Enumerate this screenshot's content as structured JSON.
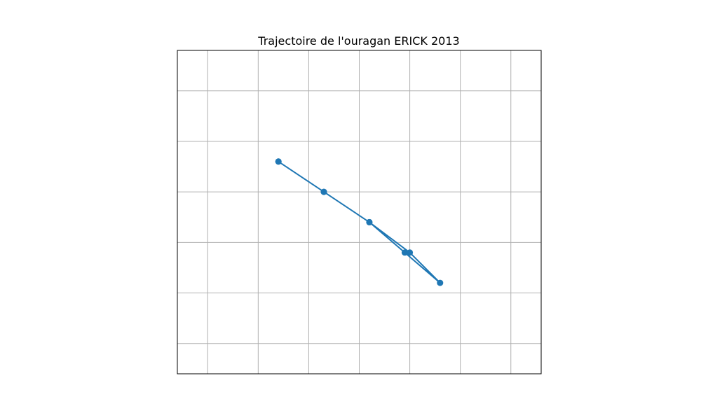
{
  "chart_data": {
    "type": "line",
    "title": "Trajectoire de l'ouragan ERICK 2013",
    "xlabel": "",
    "ylabel": "",
    "grid": true,
    "xlim": [
      -107.6,
      -100.4
    ],
    "ylim": [
      14.4,
      20.8
    ],
    "grid_x": [
      -107,
      -106,
      -105,
      -104,
      -103,
      -102,
      -101
    ],
    "grid_y": [
      15,
      16,
      17,
      18,
      19,
      20
    ],
    "series": [
      {
        "color": "#1f77b4",
        "marker": "circle",
        "x": [
          -105.6,
          -104.7,
          -103.8,
          -103.1,
          -102.4,
          -103.0,
          -103.8,
          -104.7,
          -105.6
        ],
        "y": [
          18.6,
          18.0,
          17.4,
          16.8,
          16.2,
          16.8,
          17.4,
          18.0,
          18.6
        ]
      }
    ]
  }
}
